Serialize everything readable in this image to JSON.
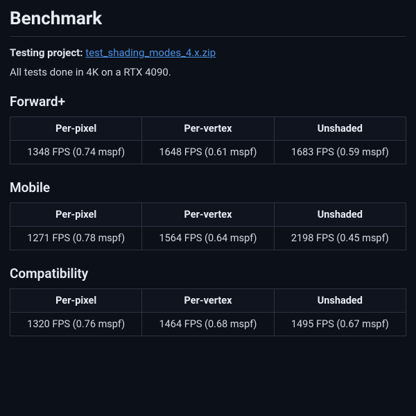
{
  "colors": {
    "background": "#0c1019",
    "text": "#dfe3ea",
    "heading": "#e8ecf3",
    "border": "#2d3340",
    "hr": "#2a2f3a",
    "link": "#4a90e2",
    "th_bg": "#10141f"
  },
  "title": "Benchmark",
  "meta": {
    "label": "Testing project: ",
    "link_text": "test_shading_modes_4.x.zip"
  },
  "description": "All tests done in 4K on a RTX 4090.",
  "columns": [
    "Per-pixel",
    "Per-vertex",
    "Unshaded"
  ],
  "sections": [
    {
      "heading": "Forward+",
      "rows": [
        [
          "1348 FPS (0.74 mspf)",
          "1648 FPS (0.61 mspf)",
          "1683 FPS (0.59 mspf)"
        ]
      ]
    },
    {
      "heading": "Mobile",
      "rows": [
        [
          "1271 FPS (0.78 mspf)",
          "1564 FPS (0.64 mspf)",
          "2198 FPS (0.45 mspf)"
        ]
      ]
    },
    {
      "heading": "Compatibility",
      "rows": [
        [
          "1320 FPS (0.76 mspf)",
          "1464 FPS (0.68 mspf)",
          "1495 FPS (0.67 mspf)"
        ]
      ]
    }
  ]
}
